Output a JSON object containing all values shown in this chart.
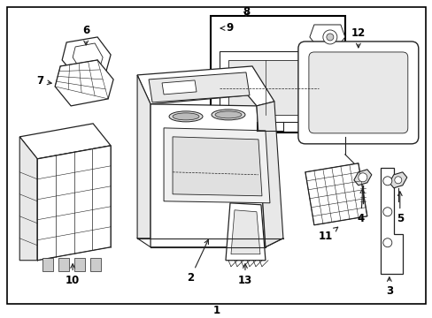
{
  "background_color": "#ffffff",
  "border_color": "#000000",
  "line_color": "#222222",
  "text_color": "#000000",
  "fig_width": 4.89,
  "fig_height": 3.6,
  "dpi": 100
}
